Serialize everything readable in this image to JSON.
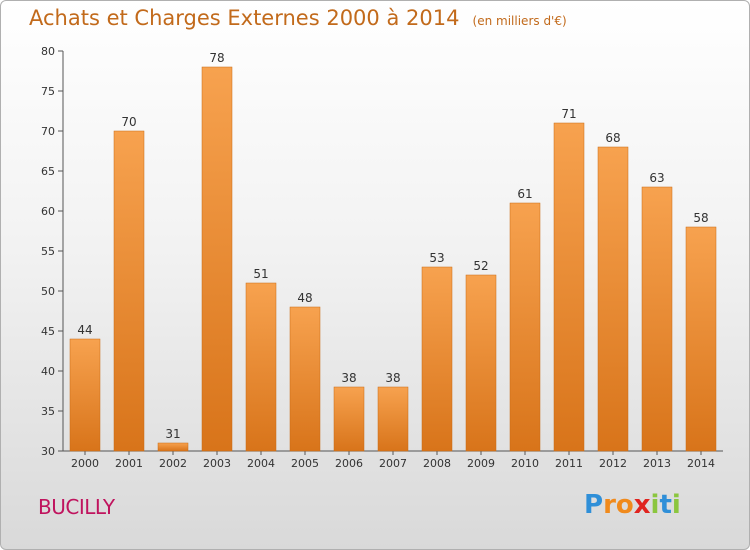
{
  "chart_data": {
    "type": "bar",
    "title": "Achats et Charges Externes 2000 à 2014",
    "unit_note": "(en milliers d'€)",
    "categories": [
      "2000",
      "2001",
      "2002",
      "2003",
      "2004",
      "2005",
      "2006",
      "2007",
      "2008",
      "2009",
      "2010",
      "2011",
      "2012",
      "2013",
      "2014"
    ],
    "values": [
      44,
      70,
      31,
      78,
      51,
      48,
      38,
      38,
      53,
      52,
      61,
      71,
      68,
      63,
      58
    ],
    "ylim": [
      30,
      80
    ],
    "yticks": [
      30,
      35,
      40,
      45,
      50,
      55,
      60,
      65,
      70,
      75,
      80
    ],
    "grid": false,
    "bar_color": "#f0923a",
    "xlabel": "",
    "ylabel": ""
  },
  "commune": "BUCILLY",
  "logo": {
    "letters": [
      "P",
      "r",
      "o",
      "x",
      "i",
      "t",
      "i"
    ],
    "colors": [
      "#2f8fd8",
      "#f08a1c",
      "#f08a1c",
      "#e0241f",
      "#8bc63f",
      "#2f8fd8",
      "#8bc63f"
    ]
  }
}
